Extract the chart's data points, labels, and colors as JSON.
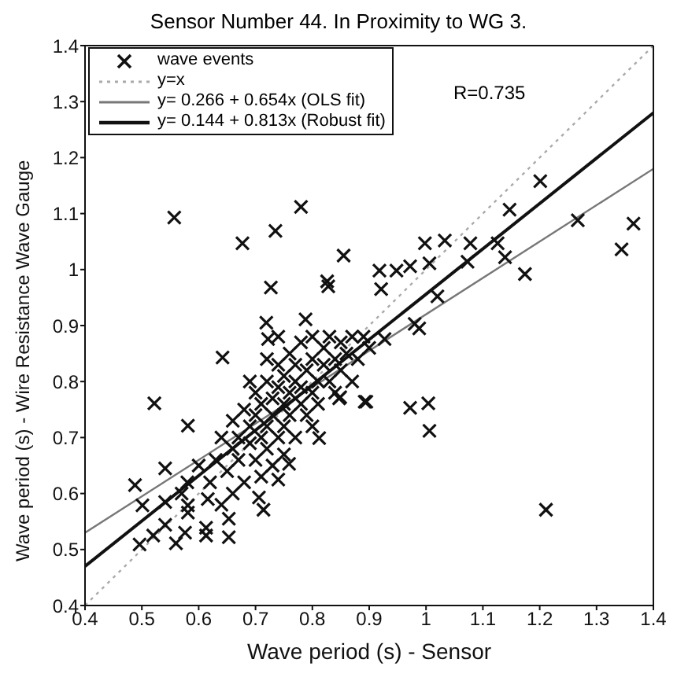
{
  "chart_data": {
    "type": "scatter",
    "title": "Sensor Number 44. In Proximity to WG 3.",
    "xlabel": "Wave period (s) - Sensor",
    "ylabel": "Wave period (s) - Wire Resistance Wave Gauge",
    "annotations": [
      "R=0.735"
    ],
    "xlim": [
      0.4,
      1.4
    ],
    "ylim": [
      0.4,
      1.4
    ],
    "xticks": [
      0.4,
      0.5,
      0.6,
      0.7,
      0.8,
      0.9,
      1,
      1.1,
      1.2,
      1.3,
      1.4
    ],
    "yticks": [
      0.4,
      0.5,
      0.6,
      0.7,
      0.8,
      0.9,
      1,
      1.1,
      1.2,
      1.3,
      1.4
    ],
    "grid": false,
    "legend": "top left",
    "series": [
      {
        "name": "wave events",
        "marker": "cross",
        "color": "#111111",
        "x": [
          0.557,
          0.78,
          0.677,
          0.735,
          0.727,
          0.855,
          1.365,
          1.344,
          1.267,
          1.201,
          1.147,
          1.174,
          1.139,
          1.126,
          1.078,
          1.073,
          1.033,
          0.998,
          1.006,
          0.918,
          0.921,
          0.972,
          0.948,
          1.02,
          0.927,
          0.98,
          0.988,
          0.828,
          0.826,
          0.719,
          0.722,
          0.788,
          0.642,
          0.522,
          0.581,
          0.972,
          1.004,
          1.006,
          0.895,
          0.849,
          1.211,
          0.488,
          0.496,
          0.52,
          0.541,
          0.56,
          0.576,
          0.613,
          0.653,
          0.653,
          0.613,
          0.501,
          0.541,
          0.541,
          0.581,
          0.581,
          0.714,
          0.706,
          0.616,
          0.74,
          0.759,
          0.812,
          0.847,
          0.892,
          0.62,
          0.63,
          0.64,
          0.65,
          0.66,
          0.66,
          0.67,
          0.67,
          0.68,
          0.68,
          0.69,
          0.69,
          0.7,
          0.7,
          0.7,
          0.71,
          0.71,
          0.72,
          0.72,
          0.72,
          0.73,
          0.73,
          0.74,
          0.74,
          0.74,
          0.75,
          0.75,
          0.75,
          0.76,
          0.76,
          0.76,
          0.77,
          0.77,
          0.77,
          0.78,
          0.78,
          0.78,
          0.79,
          0.79,
          0.8,
          0.8,
          0.8,
          0.81,
          0.81,
          0.82,
          0.82,
          0.83,
          0.83,
          0.84,
          0.85,
          0.85,
          0.86,
          0.87,
          0.88,
          0.89,
          0.64,
          0.66,
          0.71,
          0.73,
          0.75,
          0.6,
          0.58,
          0.57,
          0.69,
          0.72,
          0.74,
          0.8,
          0.84,
          0.87,
          0.9
        ],
        "values": [
          1.093,
          1.112,
          1.047,
          1.069,
          0.968,
          1.025,
          1.082,
          1.036,
          1.088,
          1.158,
          1.107,
          0.992,
          1.022,
          1.047,
          1.047,
          1.014,
          1.052,
          1.047,
          1.011,
          0.998,
          0.965,
          1.006,
          0.998,
          0.952,
          0.876,
          0.903,
          0.895,
          0.97,
          0.979,
          0.905,
          0.876,
          0.911,
          0.843,
          0.761,
          0.721,
          0.753,
          0.761,
          0.712,
          0.764,
          0.772,
          0.571,
          0.615,
          0.509,
          0.525,
          0.544,
          0.511,
          0.53,
          0.525,
          0.522,
          0.555,
          0.539,
          0.579,
          0.585,
          0.645,
          0.579,
          0.566,
          0.571,
          0.593,
          0.59,
          0.625,
          0.653,
          0.699,
          0.77,
          0.764,
          0.62,
          0.66,
          0.7,
          0.64,
          0.68,
          0.73,
          0.66,
          0.7,
          0.62,
          0.75,
          0.69,
          0.72,
          0.66,
          0.74,
          0.78,
          0.7,
          0.76,
          0.68,
          0.72,
          0.8,
          0.74,
          0.77,
          0.7,
          0.79,
          0.83,
          0.72,
          0.76,
          0.81,
          0.74,
          0.78,
          0.85,
          0.7,
          0.8,
          0.83,
          0.76,
          0.79,
          0.87,
          0.74,
          0.82,
          0.78,
          0.84,
          0.88,
          0.8,
          0.76,
          0.83,
          0.86,
          0.8,
          0.88,
          0.84,
          0.82,
          0.87,
          0.85,
          0.88,
          0.84,
          0.88,
          0.58,
          0.6,
          0.63,
          0.65,
          0.67,
          0.65,
          0.62,
          0.6,
          0.8,
          0.84,
          0.88,
          0.72,
          0.78,
          0.8,
          0.86
        ]
      },
      {
        "name": "y=x",
        "type": "line",
        "line_style": "dotted",
        "color": "#aaaaaa",
        "x": [
          0.4,
          1.4
        ],
        "values": [
          0.4,
          1.4
        ]
      },
      {
        "name": "y= 0.266 + 0.654x (OLS fit)",
        "type": "line",
        "line_style": "solid",
        "color": "#777777",
        "x": [
          0.4,
          1.4
        ],
        "values": [
          0.53,
          1.18
        ]
      },
      {
        "name": "y= 0.144 + 0.813x (Robust fit)",
        "type": "line",
        "line_style": "solid",
        "color": "#111111",
        "x": [
          0.4,
          1.4
        ],
        "values": [
          0.47,
          1.28
        ]
      }
    ]
  }
}
